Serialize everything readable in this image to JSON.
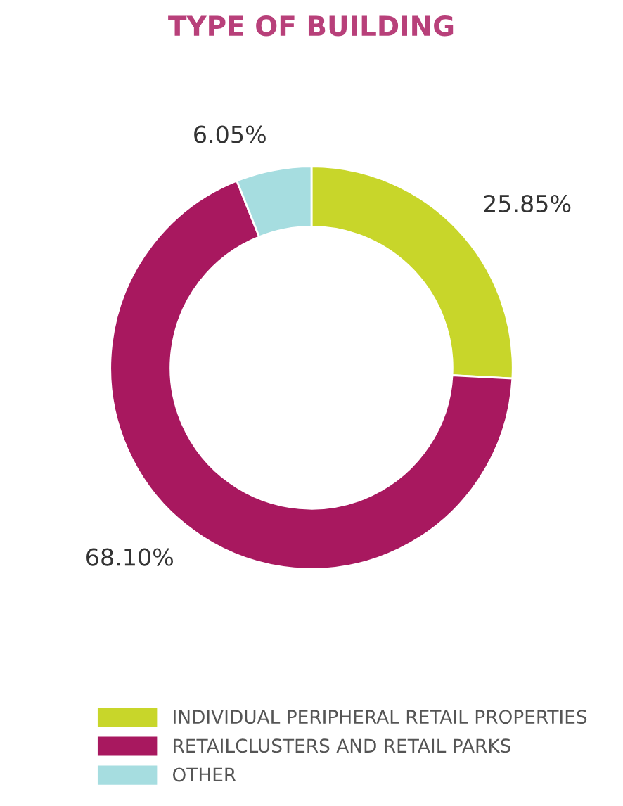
{
  "chart_data": {
    "type": "donut",
    "title": "TYPE OF BUILDING",
    "categories": [
      "INDIVIDUAL PERIPHERAL RETAIL PROPERTIES",
      "RETAILCLUSTERS AND RETAIL PARKS",
      "OTHER"
    ],
    "values": [
      25.85,
      68.1,
      6.05
    ],
    "value_labels": [
      "25.85%",
      "68.10%",
      "6.05%"
    ],
    "colors": [
      "#c8d62a",
      "#a8185f",
      "#a6dde0"
    ],
    "legend": "bottom"
  }
}
